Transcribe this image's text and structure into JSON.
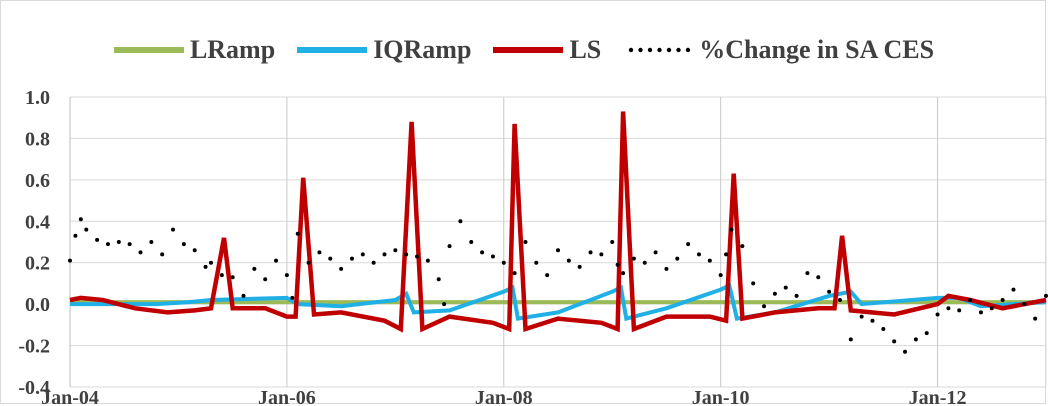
{
  "chart_data": {
    "type": "line",
    "title": "",
    "xlabel": "",
    "ylabel": "",
    "ylim": [
      -0.4,
      1.0
    ],
    "y_ticks": [
      "1.0",
      "0.8",
      "0.6",
      "0.4",
      "0.2",
      "0.0",
      "-0.2",
      "-0.4"
    ],
    "y_tick_values": [
      1.0,
      0.8,
      0.6,
      0.4,
      0.2,
      0.0,
      -0.2,
      -0.4
    ],
    "x_ticks": [
      "Jan-04",
      "Jan-06",
      "Jan-08",
      "Jan-10",
      "Jan-12"
    ],
    "x_tick_years": [
      2004,
      2006,
      2008,
      2010,
      2012
    ],
    "xlim": [
      2004.0,
      2013.0
    ],
    "grid": true,
    "legend_position": "top",
    "series": [
      {
        "name": "LRamp",
        "color": "#9bbb59",
        "style": "solid",
        "points": [
          [
            2004.0,
            0.01
          ],
          [
            2013.0,
            0.01
          ]
        ]
      },
      {
        "name": "IQRamp",
        "color": "#1fb0e6",
        "style": "solid",
        "points": [
          [
            2004.0,
            0.0
          ],
          [
            2004.8,
            0.0
          ],
          [
            2005.1,
            0.01
          ],
          [
            2005.3,
            0.02
          ],
          [
            2006.0,
            0.03
          ],
          [
            2006.1,
            0.0
          ],
          [
            2006.5,
            -0.01
          ],
          [
            2007.0,
            0.02
          ],
          [
            2007.1,
            0.05
          ],
          [
            2007.17,
            -0.04
          ],
          [
            2007.5,
            -0.03
          ],
          [
            2008.0,
            0.06
          ],
          [
            2008.08,
            0.08
          ],
          [
            2008.13,
            -0.07
          ],
          [
            2008.5,
            -0.04
          ],
          [
            2009.0,
            0.06
          ],
          [
            2009.08,
            0.08
          ],
          [
            2009.13,
            -0.07
          ],
          [
            2009.5,
            -0.02
          ],
          [
            2010.0,
            0.07
          ],
          [
            2010.08,
            0.09
          ],
          [
            2010.15,
            -0.07
          ],
          [
            2010.5,
            -0.04
          ],
          [
            2011.0,
            0.04
          ],
          [
            2011.2,
            0.06
          ],
          [
            2011.3,
            0.0
          ],
          [
            2012.0,
            0.03
          ],
          [
            2012.2,
            0.03
          ],
          [
            2012.4,
            -0.01
          ],
          [
            2013.0,
            0.01
          ]
        ]
      },
      {
        "name": "LS",
        "color": "#c00000",
        "style": "solid",
        "points": [
          [
            2004.0,
            0.02
          ],
          [
            2004.1,
            0.03
          ],
          [
            2004.3,
            0.02
          ],
          [
            2004.6,
            -0.02
          ],
          [
            2004.9,
            -0.04
          ],
          [
            2005.15,
            -0.03
          ],
          [
            2005.3,
            -0.02
          ],
          [
            2005.42,
            0.32
          ],
          [
            2005.5,
            -0.02
          ],
          [
            2005.8,
            -0.02
          ],
          [
            2006.0,
            -0.06
          ],
          [
            2006.08,
            -0.06
          ],
          [
            2006.15,
            0.61
          ],
          [
            2006.25,
            -0.05
          ],
          [
            2006.5,
            -0.04
          ],
          [
            2006.9,
            -0.08
          ],
          [
            2007.05,
            -0.12
          ],
          [
            2007.15,
            0.88
          ],
          [
            2007.25,
            -0.12
          ],
          [
            2007.5,
            -0.06
          ],
          [
            2007.9,
            -0.09
          ],
          [
            2008.05,
            -0.12
          ],
          [
            2008.1,
            0.87
          ],
          [
            2008.2,
            -0.12
          ],
          [
            2008.5,
            -0.07
          ],
          [
            2008.9,
            -0.09
          ],
          [
            2009.05,
            -0.12
          ],
          [
            2009.1,
            0.93
          ],
          [
            2009.2,
            -0.12
          ],
          [
            2009.5,
            -0.06
          ],
          [
            2009.9,
            -0.06
          ],
          [
            2010.05,
            -0.08
          ],
          [
            2010.12,
            0.63
          ],
          [
            2010.2,
            -0.07
          ],
          [
            2010.5,
            -0.04
          ],
          [
            2010.9,
            -0.02
          ],
          [
            2011.05,
            -0.02
          ],
          [
            2011.12,
            0.33
          ],
          [
            2011.2,
            -0.03
          ],
          [
            2011.6,
            -0.05
          ],
          [
            2012.0,
            0.0
          ],
          [
            2012.1,
            0.04
          ],
          [
            2012.3,
            0.02
          ],
          [
            2012.6,
            -0.02
          ],
          [
            2013.0,
            0.02
          ]
        ]
      },
      {
        "name": "%Change in SA CES",
        "color": "#000000",
        "style": "dotted",
        "points": [
          [
            2004.0,
            0.21
          ],
          [
            2004.05,
            0.33
          ],
          [
            2004.1,
            0.41
          ],
          [
            2004.15,
            0.36
          ],
          [
            2004.25,
            0.31
          ],
          [
            2004.35,
            0.29
          ],
          [
            2004.45,
            0.3
          ],
          [
            2004.55,
            0.29
          ],
          [
            2004.65,
            0.25
          ],
          [
            2004.75,
            0.3
          ],
          [
            2004.85,
            0.24
          ],
          [
            2004.95,
            0.36
          ],
          [
            2005.05,
            0.29
          ],
          [
            2005.15,
            0.26
          ],
          [
            2005.25,
            0.18
          ],
          [
            2005.3,
            0.2
          ],
          [
            2005.4,
            0.14
          ],
          [
            2005.5,
            0.13
          ],
          [
            2005.6,
            0.04
          ],
          [
            2005.7,
            0.17
          ],
          [
            2005.8,
            0.12
          ],
          [
            2005.9,
            0.21
          ],
          [
            2006.0,
            0.14
          ],
          [
            2006.05,
            0.03
          ],
          [
            2006.1,
            0.34
          ],
          [
            2006.2,
            0.2
          ],
          [
            2006.3,
            0.25
          ],
          [
            2006.4,
            0.22
          ],
          [
            2006.5,
            0.17
          ],
          [
            2006.6,
            0.22
          ],
          [
            2006.7,
            0.24
          ],
          [
            2006.8,
            0.2
          ],
          [
            2006.9,
            0.24
          ],
          [
            2007.0,
            0.26
          ],
          [
            2007.1,
            0.24
          ],
          [
            2007.2,
            0.23
          ],
          [
            2007.3,
            0.21
          ],
          [
            2007.4,
            0.12
          ],
          [
            2007.45,
            0.0
          ],
          [
            2007.5,
            0.28
          ],
          [
            2007.6,
            0.4
          ],
          [
            2007.7,
            0.3
          ],
          [
            2007.8,
            0.25
          ],
          [
            2007.9,
            0.23
          ],
          [
            2008.0,
            0.2
          ],
          [
            2008.1,
            0.15
          ],
          [
            2008.2,
            0.3
          ],
          [
            2008.3,
            0.2
          ],
          [
            2008.4,
            0.14
          ],
          [
            2008.5,
            0.26
          ],
          [
            2008.6,
            0.21
          ],
          [
            2008.7,
            0.18
          ],
          [
            2008.8,
            0.25
          ],
          [
            2008.9,
            0.24
          ],
          [
            2009.0,
            0.3
          ],
          [
            2009.05,
            0.19
          ],
          [
            2009.1,
            0.15
          ],
          [
            2009.2,
            0.22
          ],
          [
            2009.3,
            0.2
          ],
          [
            2009.4,
            0.25
          ],
          [
            2009.5,
            0.17
          ],
          [
            2009.6,
            0.22
          ],
          [
            2009.7,
            0.29
          ],
          [
            2009.8,
            0.24
          ],
          [
            2009.9,
            0.21
          ],
          [
            2010.0,
            0.14
          ],
          [
            2010.05,
            0.24
          ],
          [
            2010.1,
            0.36
          ],
          [
            2010.2,
            0.28
          ],
          [
            2010.3,
            0.1
          ],
          [
            2010.4,
            -0.01
          ],
          [
            2010.5,
            0.05
          ],
          [
            2010.6,
            0.08
          ],
          [
            2010.7,
            0.04
          ],
          [
            2010.8,
            0.15
          ],
          [
            2010.9,
            0.13
          ],
          [
            2011.0,
            0.06
          ],
          [
            2011.1,
            0.02
          ],
          [
            2011.2,
            -0.17
          ],
          [
            2011.3,
            -0.06
          ],
          [
            2011.4,
            -0.08
          ],
          [
            2011.5,
            -0.12
          ],
          [
            2011.6,
            -0.18
          ],
          [
            2011.7,
            -0.23
          ],
          [
            2011.8,
            -0.17
          ],
          [
            2011.9,
            -0.14
          ],
          [
            2012.0,
            -0.05
          ],
          [
            2012.1,
            -0.02
          ],
          [
            2012.2,
            -0.03
          ],
          [
            2012.3,
            0.02
          ],
          [
            2012.4,
            -0.04
          ],
          [
            2012.5,
            -0.02
          ],
          [
            2012.6,
            0.02
          ],
          [
            2012.7,
            0.07
          ],
          [
            2012.8,
            0.0
          ],
          [
            2012.9,
            -0.07
          ],
          [
            2013.0,
            0.04
          ]
        ]
      }
    ]
  }
}
